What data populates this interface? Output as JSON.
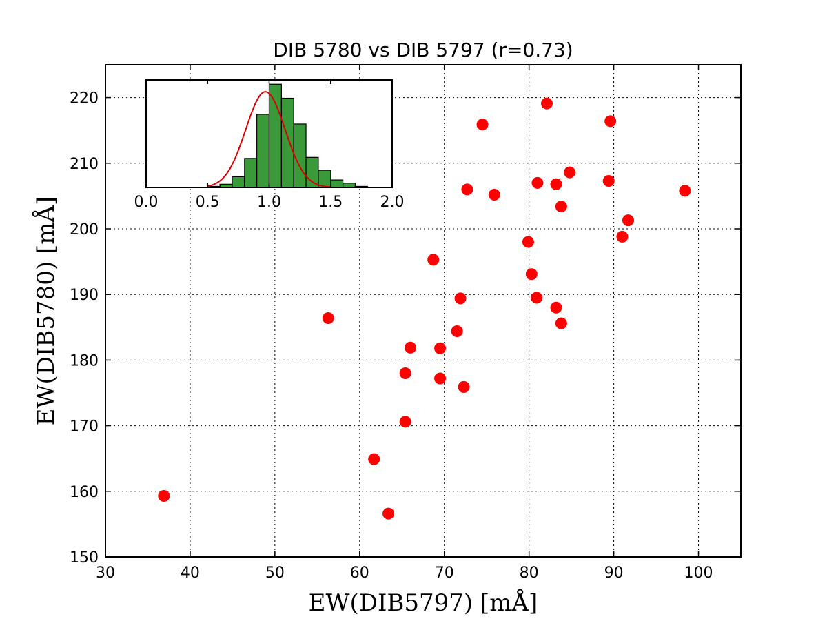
{
  "chart_data": [
    {
      "type": "scatter",
      "title": "DIB 5780 vs DIB 5797 (r=0.73)",
      "xlabel": "EW(DIB5797)  [mÅ]",
      "ylabel": "EW(DIB5780)  [mÅ]",
      "xlim": [
        30,
        105
      ],
      "ylim": [
        150,
        225
      ],
      "xticks": [
        "30",
        "40",
        "50",
        "60",
        "70",
        "80",
        "90",
        "100"
      ],
      "yticks": [
        "150",
        "160",
        "170",
        "180",
        "190",
        "200",
        "210",
        "220"
      ],
      "grid": true,
      "marker_color": "#ff0000",
      "x": [
        36.9,
        56.3,
        61.7,
        63.4,
        65.4,
        65.4,
        66.0,
        68.7,
        69.5,
        69.5,
        71.5,
        71.9,
        72.3,
        72.7,
        74.5,
        75.9,
        79.9,
        80.3,
        80.9,
        81.0,
        82.1,
        83.2,
        83.2,
        83.8,
        83.8,
        84.8,
        89.4,
        89.6,
        91.0,
        91.7,
        98.4
      ],
      "y": [
        159.3,
        186.4,
        164.9,
        156.6,
        178.0,
        170.6,
        181.9,
        195.3,
        181.8,
        177.2,
        184.4,
        189.4,
        175.9,
        206.0,
        215.9,
        205.2,
        198.0,
        193.1,
        189.5,
        207.0,
        219.1,
        188.0,
        206.8,
        185.6,
        203.4,
        208.6,
        207.3,
        216.4,
        198.8,
        201.3,
        205.8
      ]
    },
    {
      "type": "bar",
      "role": "inset-histogram",
      "xlim": [
        0.0,
        2.0
      ],
      "xticks": [
        "0.0",
        "0.5",
        "1.0",
        "1.5",
        "2.0"
      ],
      "bar_color": "#3a9a3a",
      "curve_color": "#dd0000",
      "bin_width": 0.1,
      "bin_edges": [
        0.5,
        0.6,
        0.7,
        0.8,
        0.9,
        1.0,
        1.1,
        1.2,
        1.3,
        1.4,
        1.5,
        1.6,
        1.7
      ],
      "values": [
        1,
        3,
        10,
        27,
        68,
        96,
        83,
        59,
        28,
        16,
        7,
        4,
        1
      ],
      "fit": {
        "shape": "gaussian",
        "mean": 0.97,
        "sigma": 0.16,
        "peak": 89
      }
    }
  ]
}
